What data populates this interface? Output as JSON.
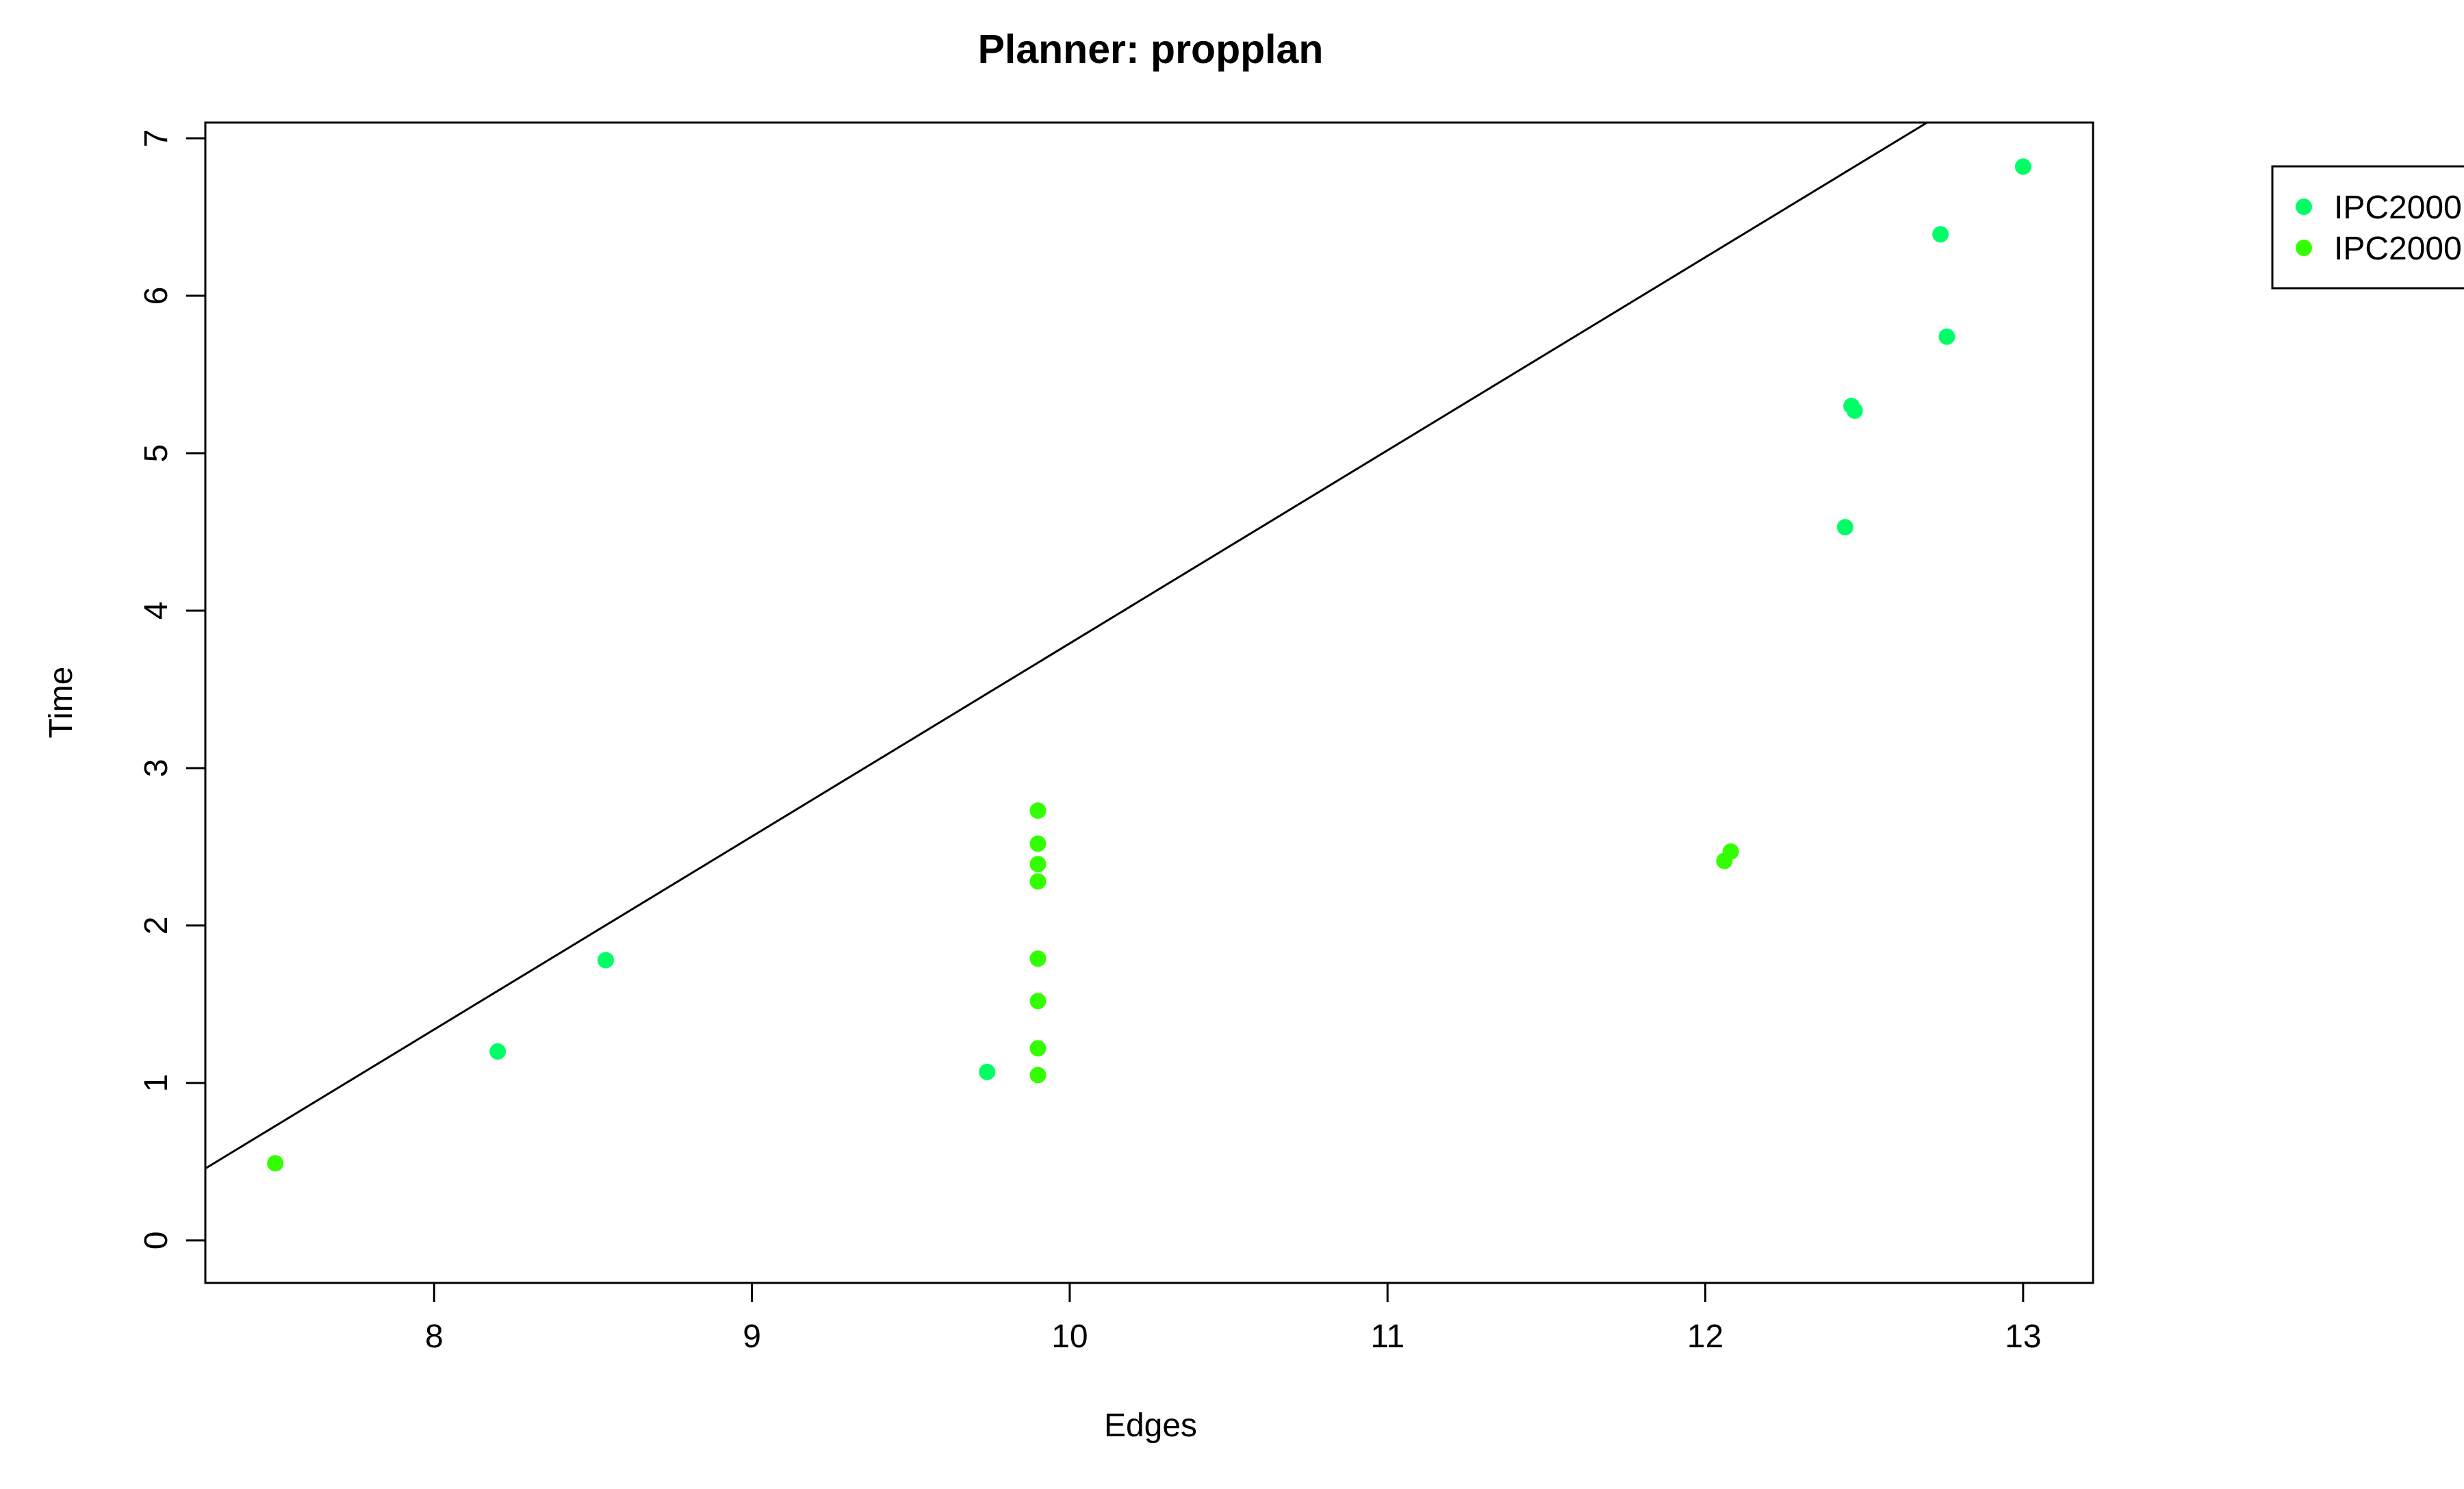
{
  "chart_data": {
    "type": "scatter",
    "title": "Planner: propplan",
    "xlabel": "Edges",
    "ylabel": "Time",
    "xlim": [
      7.28,
      13.22
    ],
    "ylim": [
      -0.27,
      7.1
    ],
    "xticks": [
      8,
      9,
      10,
      11,
      12,
      13
    ],
    "yticks": [
      0,
      1,
      2,
      3,
      4,
      5,
      6,
      7
    ],
    "xtick_labels": [
      "8",
      "9",
      "10",
      "11",
      "12",
      "13"
    ],
    "ytick_labels": [
      "0",
      "1",
      "2",
      "3",
      "4",
      "5",
      "6",
      "7"
    ],
    "grid": false,
    "legend_position": "top-right, outside plot",
    "series": [
      {
        "name": "IPC2000",
        "color": "#00ff66",
        "points": [
          [
            8.2,
            1.2
          ],
          [
            8.54,
            1.78
          ],
          [
            9.74,
            1.07
          ],
          [
            12.44,
            4.53
          ],
          [
            12.46,
            5.3
          ],
          [
            12.47,
            5.27
          ],
          [
            12.74,
            6.39
          ],
          [
            12.76,
            5.74
          ],
          [
            13.0,
            6.82
          ]
        ]
      },
      {
        "name": "IPC2000",
        "color": "#33ff00",
        "points": [
          [
            7.5,
            0.49
          ],
          [
            9.9,
            2.73
          ],
          [
            9.9,
            2.52
          ],
          [
            9.9,
            2.39
          ],
          [
            9.9,
            2.28
          ],
          [
            9.9,
            1.79
          ],
          [
            9.9,
            1.52
          ],
          [
            9.9,
            1.22
          ],
          [
            9.9,
            1.05
          ],
          [
            12.06,
            2.41
          ],
          [
            12.08,
            2.47
          ]
        ]
      }
    ],
    "regression_line": {
      "color": "#000000",
      "intercept": -8.47,
      "slope": 1.2262
    }
  }
}
